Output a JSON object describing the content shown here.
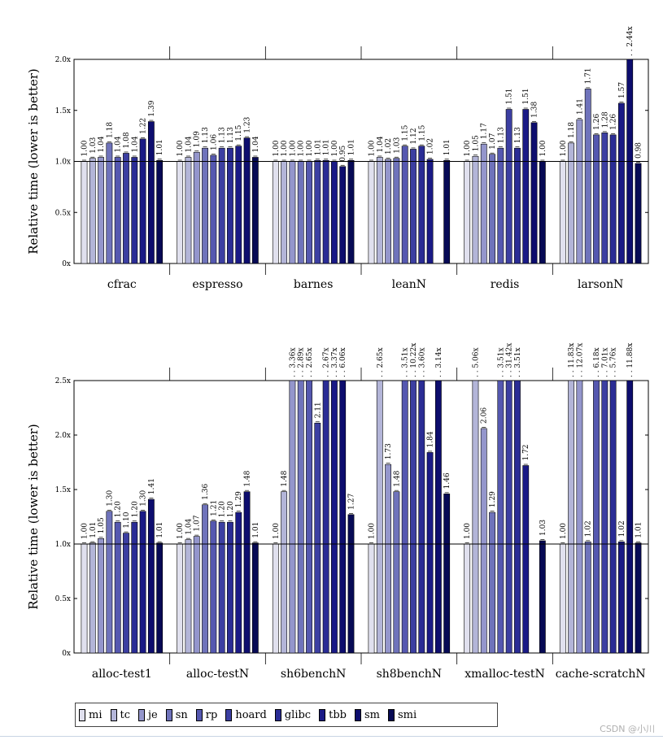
{
  "colors": {
    "mi": "#e0e0ee",
    "tc": "#b3b5d8",
    "je": "#9496cc",
    "sn": "#6f73bb",
    "rp": "#5558b0",
    "hoard": "#3c3fa2",
    "glibc": "#2a2c95",
    "tbb": "#1a1a86",
    "sm": "#0d0d6e",
    "smi": "#070a55"
  },
  "chart_data": [
    {
      "type": "bar",
      "ylabel": "Relative time (lower is better)",
      "ylim": [
        0,
        2.0
      ],
      "yticks": [
        0,
        0.5,
        1.0,
        1.5,
        2.0
      ],
      "ytick_labels": [
        "0x",
        "0.5x",
        "1.0x",
        "1.5x",
        "2.0x"
      ],
      "series_names": [
        "mi",
        "tc",
        "je",
        "sn",
        "rp",
        "hoard",
        "glibc",
        "tbb",
        "sm",
        "smi"
      ],
      "categories": [
        {
          "name": "cfrac",
          "values": [
            1.0,
            1.03,
            1.04,
            1.18,
            1.04,
            1.08,
            1.04,
            1.22,
            1.39,
            1.01
          ],
          "labels": [
            "1.00",
            "1.03",
            "1.04",
            "1.18",
            "1.04",
            "1.08",
            "1.04",
            "1.22",
            "1.39",
            "1.01"
          ]
        },
        {
          "name": "espresso",
          "values": [
            1.0,
            1.04,
            1.09,
            1.13,
            1.06,
            1.13,
            1.13,
            1.15,
            1.23,
            1.04
          ],
          "labels": [
            "1.00",
            "1.04",
            "1.09",
            "1.13",
            "1.06",
            "1.13",
            "1.13",
            "1.15",
            "1.23",
            "1.04"
          ]
        },
        {
          "name": "barnes",
          "values": [
            1.0,
            1.0,
            1.0,
            1.0,
            1.0,
            1.01,
            1.01,
            1.0,
            0.95,
            1.01
          ],
          "labels": [
            "1.00",
            "1.00",
            "1.00",
            "1.00",
            "1.00",
            "1.01",
            "1.01",
            "1.00",
            "0.95",
            "1.01"
          ]
        },
        {
          "name": "leanN",
          "values": [
            1.0,
            1.04,
            1.02,
            1.03,
            1.15,
            1.12,
            1.15,
            1.02,
            null,
            1.01
          ],
          "labels": [
            "1.00",
            "1.04",
            "1.02",
            "1.03",
            "1.15",
            "1.12",
            "1.15",
            "1.02",
            "",
            "1.01"
          ]
        },
        {
          "name": "redis",
          "values": [
            1.0,
            1.05,
            1.17,
            1.07,
            1.13,
            1.51,
            1.13,
            1.51,
            1.38,
            1.0
          ],
          "labels": [
            "1.00",
            "1.05",
            "1.17",
            "1.07",
            "1.13",
            "1.51",
            "1.13",
            "1.51",
            "1.38",
            "1.00"
          ]
        },
        {
          "name": "larsonN",
          "values": [
            1.0,
            1.18,
            1.41,
            1.71,
            1.26,
            1.28,
            1.26,
            1.57,
            2.44,
            0.98
          ],
          "labels": [
            "1.00",
            "1.18",
            "1.41",
            "1.71",
            "1.26",
            "1.28",
            "1.26",
            "1.57",
            "2.44x",
            "0.98"
          ]
        }
      ]
    },
    {
      "type": "bar",
      "ylabel": "Relative time (lower is better)",
      "ylim": [
        0,
        2.5
      ],
      "yticks": [
        0,
        0.5,
        1.0,
        1.5,
        2.0,
        2.5
      ],
      "ytick_labels": [
        "0x",
        "0.5x",
        "1.0x",
        "1.5x",
        "2.0x",
        "2.5x"
      ],
      "series_names": [
        "mi",
        "tc",
        "je",
        "sn",
        "rp",
        "hoard",
        "glibc",
        "tbb",
        "sm",
        "smi"
      ],
      "categories": [
        {
          "name": "alloc-test1",
          "values": [
            1.0,
            1.01,
            1.05,
            1.3,
            1.2,
            1.1,
            1.2,
            1.3,
            1.41,
            1.01
          ],
          "labels": [
            "1.00",
            "1.01",
            "1.05",
            "1.30",
            "1.20",
            "1.10",
            "1.20",
            "1.30",
            "1.41",
            "1.01"
          ]
        },
        {
          "name": "alloc-testN",
          "values": [
            1.0,
            1.04,
            1.07,
            1.36,
            1.21,
            1.2,
            1.2,
            1.29,
            1.48,
            1.01
          ],
          "labels": [
            "1.00",
            "1.04",
            "1.07",
            "1.36",
            "1.21",
            "1.20",
            "1.20",
            "1.29",
            "1.48",
            "1.01"
          ]
        },
        {
          "name": "sh6benchN",
          "values": [
            1.0,
            1.48,
            3.36,
            2.89,
            2.65,
            2.11,
            2.67,
            3.37,
            6.06,
            1.27
          ],
          "labels": [
            "1.00",
            "1.48",
            "3.36x",
            "2.89x",
            "2.65x",
            "2.11",
            "2.67x",
            "3.37x",
            "6.06x",
            "1.27"
          ]
        },
        {
          "name": "sh8benchN",
          "values": [
            1.0,
            2.65,
            1.73,
            1.48,
            3.51,
            10.22,
            3.6,
            1.84,
            3.14,
            1.46
          ],
          "labels": [
            "1.00",
            "2.65x",
            "1.73",
            "1.48",
            "3.51x",
            "10.22x",
            "3.60x",
            "1.84",
            "3.14x",
            "1.46"
          ]
        },
        {
          "name": "xmalloc-testN",
          "values": [
            1.0,
            5.06,
            2.06,
            1.29,
            3.51,
            31.42,
            3.51,
            1.72,
            null,
            1.03
          ],
          "labels": [
            "1.00",
            "5.06x",
            "2.06",
            "1.29",
            "3.51x",
            "31.42x",
            "3.51x",
            "1.72",
            "",
            "1.03"
          ]
        },
        {
          "name": "cache-scratchN",
          "values": [
            1.0,
            11.83,
            12.07,
            1.02,
            6.18,
            7.01,
            5.76,
            1.02,
            11.88,
            1.01
          ],
          "labels": [
            "1.00",
            "11.83x",
            "12.07x",
            "1.02",
            "6.18x",
            "7.01x",
            "5.76x",
            "1.02",
            "11.88x",
            "1.01"
          ]
        }
      ]
    }
  ],
  "legend": {
    "items": [
      "mi",
      "tc",
      "je",
      "sn",
      "rp",
      "hoard",
      "glibc",
      "tbb",
      "sm",
      "smi"
    ]
  },
  "watermark": "CSDN @小川"
}
